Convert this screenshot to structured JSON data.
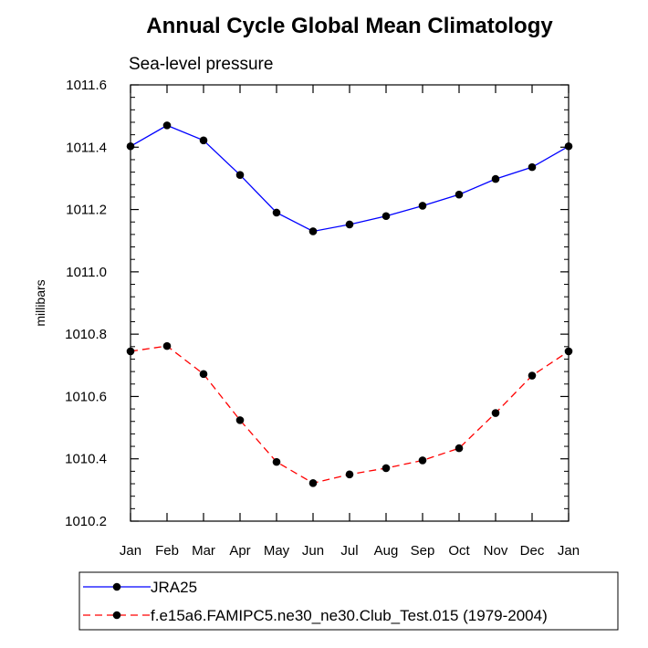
{
  "chart_data": {
    "type": "line",
    "title": "Annual Cycle Global Mean Climatology",
    "subtitle": "Sea-level pressure",
    "xlabel": "",
    "ylabel": "millibars",
    "categories": [
      "Jan",
      "Feb",
      "Mar",
      "Apr",
      "May",
      "Jun",
      "Jul",
      "Aug",
      "Sep",
      "Oct",
      "Nov",
      "Dec",
      "Jan"
    ],
    "ylim": [
      1010.2,
      1011.6
    ],
    "yticks": [
      1010.2,
      1010.4,
      1010.6,
      1010.8,
      1011.0,
      1011.2,
      1011.4,
      1011.6
    ],
    "ytick_labels": [
      "1010.2",
      "1010.4",
      "1010.6",
      "1010.8",
      "1011.0",
      "1011.2",
      "1011.4",
      "1011.6"
    ],
    "grid": false,
    "legend_position": "bottom",
    "series": [
      {
        "name": "JRA25",
        "color": "#0000ff",
        "dash": "solid",
        "values": [
          1011.403,
          1011.47,
          1011.422,
          1011.311,
          1011.19,
          1011.13,
          1011.152,
          1011.179,
          1011.212,
          1011.248,
          1011.298,
          1011.336,
          1011.403
        ]
      },
      {
        "name": "f.e15a6.FAMIPC5.ne30_ne30.Club_Test.015 (1979-2004)",
        "color": "#ff0000",
        "dash": "dashed",
        "values": [
          1010.745,
          1010.762,
          1010.672,
          1010.524,
          1010.39,
          1010.322,
          1010.35,
          1010.37,
          1010.395,
          1010.434,
          1010.547,
          1010.667,
          1010.745
        ]
      }
    ]
  }
}
